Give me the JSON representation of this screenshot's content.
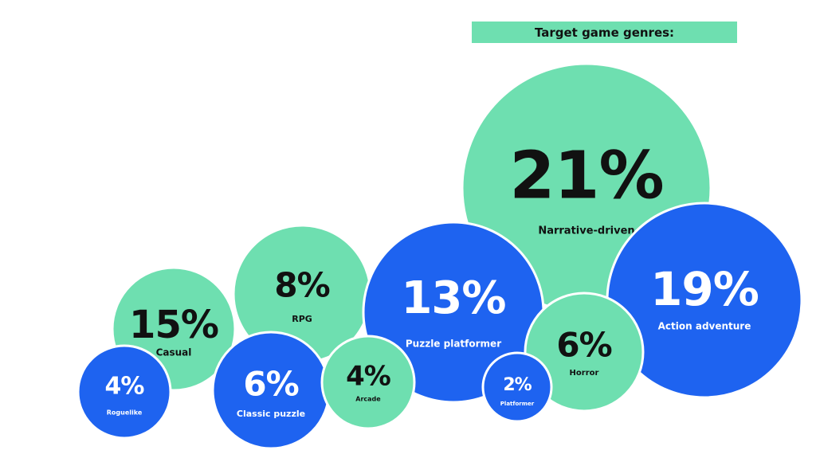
{
  "title": "Target game genres:",
  "colors": {
    "green": "#6EDFB0",
    "blue": "#1E63F0",
    "title_bg": "#6EDFB0",
    "dark_text": "#111111",
    "light_text": "#ffffff"
  },
  "chart_data": {
    "type": "bubble",
    "title": "Target game genres:",
    "items": [
      {
        "label": "Narrative-driven",
        "value": 21,
        "display": "21%",
        "color": "green"
      },
      {
        "label": "Action adventure",
        "value": 19,
        "display": "19%",
        "color": "blue"
      },
      {
        "label": "Casual",
        "value": 15,
        "display": "15%",
        "color": "green"
      },
      {
        "label": "Puzzle platformer",
        "value": 13,
        "display": "13%",
        "color": "blue"
      },
      {
        "label": "RPG",
        "value": 8,
        "display": "8%",
        "color": "green"
      },
      {
        "label": "Horror",
        "value": 6,
        "display": "6%",
        "color": "green"
      },
      {
        "label": "Classic puzzle",
        "value": 6,
        "display": "6%",
        "color": "blue"
      },
      {
        "label": "Arcade",
        "value": 4,
        "display": "4%",
        "color": "green"
      },
      {
        "label": "Roguelike",
        "value": 4,
        "display": "4%",
        "color": "blue"
      },
      {
        "label": "Platformer",
        "value": 2,
        "display": "2%",
        "color": "blue"
      }
    ]
  }
}
